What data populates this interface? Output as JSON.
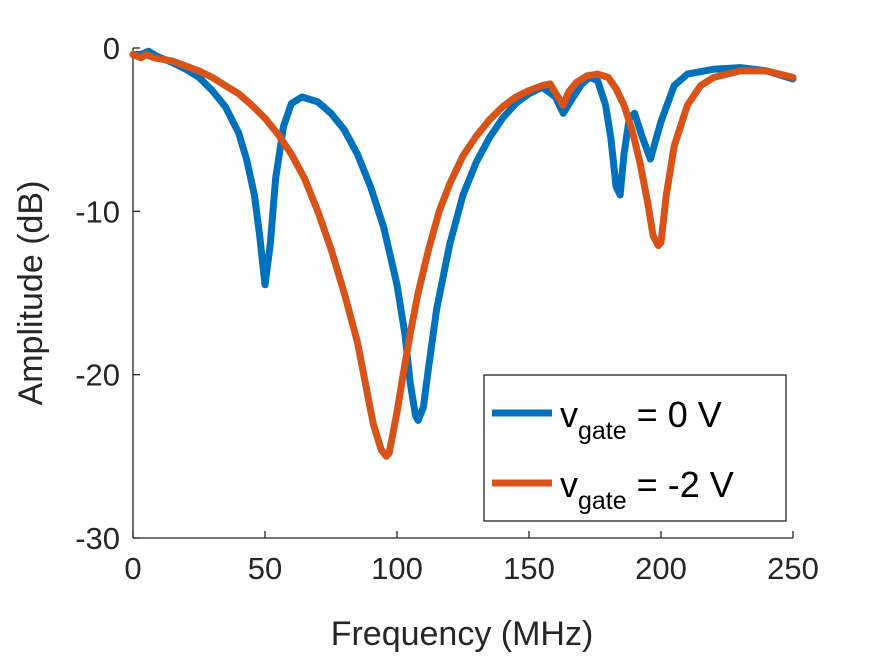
{
  "chart_data": {
    "type": "line",
    "title": "",
    "xlabel": "Frequency (MHz)",
    "ylabel": "Amplitude (dB)",
    "xlim": [
      0,
      250
    ],
    "ylim": [
      -30,
      0
    ],
    "xticks": [
      0,
      50,
      100,
      150,
      200,
      250
    ],
    "yticks": [
      0,
      -10,
      -20,
      -30
    ],
    "xtick_labels": [
      "0",
      "50",
      "100",
      "150",
      "200",
      "250"
    ],
    "ytick_labels": [
      "0",
      "-10",
      "-20",
      "-30"
    ],
    "grid": false,
    "legend_position": "bottom-right",
    "series": [
      {
        "name": "v",
        "name_subscript": "gate",
        "name_suffix": " = 0 V",
        "color": "#0072BD",
        "x": [
          0,
          3,
          6,
          9,
          15,
          20,
          25,
          30,
          35,
          40,
          43,
          46,
          48,
          50,
          52,
          54,
          57,
          60,
          64,
          70,
          75,
          80,
          85,
          90,
          95,
          100,
          103,
          105,
          107,
          108,
          110,
          112,
          115,
          120,
          125,
          130,
          135,
          140,
          145,
          150,
          155,
          160,
          163,
          166,
          170,
          173,
          176,
          179,
          181,
          183,
          184.5,
          186,
          188,
          190,
          193,
          196,
          200,
          205,
          210,
          220,
          230,
          240,
          250
        ],
        "y": [
          -0.4,
          -0.4,
          -0.2,
          -0.5,
          -0.9,
          -1.3,
          -1.8,
          -2.6,
          -3.6,
          -5.2,
          -6.8,
          -9.0,
          -11.5,
          -14.5,
          -12.0,
          -8.0,
          -4.8,
          -3.4,
          -3.0,
          -3.3,
          -4.0,
          -5.0,
          -6.5,
          -8.5,
          -11.0,
          -14.5,
          -17.5,
          -20.5,
          -22.5,
          -22.8,
          -22.0,
          -19.5,
          -16.0,
          -12.0,
          -9.0,
          -7.0,
          -5.5,
          -4.3,
          -3.4,
          -2.8,
          -2.4,
          -3.0,
          -4.0,
          -3.2,
          -2.2,
          -1.8,
          -2.0,
          -3.5,
          -5.5,
          -8.5,
          -9.0,
          -6.5,
          -4.3,
          -4.0,
          -5.5,
          -6.8,
          -4.5,
          -2.3,
          -1.6,
          -1.3,
          -1.2,
          -1.4,
          -1.9
        ]
      },
      {
        "name": "v",
        "name_subscript": "gate",
        "name_suffix": " = -2 V",
        "color": "#D95319",
        "x": [
          0,
          3,
          5,
          8,
          15,
          20,
          25,
          30,
          35,
          40,
          45,
          50,
          55,
          60,
          65,
          70,
          75,
          80,
          85,
          88,
          91,
          94,
          96,
          97,
          98,
          100,
          102,
          105,
          108,
          112,
          116,
          120,
          125,
          130,
          135,
          140,
          145,
          150,
          155,
          158,
          161,
          163,
          165,
          168,
          172,
          176,
          180,
          183,
          186,
          189,
          192,
          195,
          197,
          199,
          200,
          202,
          205,
          210,
          215,
          220,
          230,
          240,
          250
        ],
        "y": [
          -0.4,
          -0.6,
          -0.4,
          -0.6,
          -0.8,
          -1.1,
          -1.4,
          -1.8,
          -2.3,
          -2.8,
          -3.5,
          -4.3,
          -5.3,
          -6.5,
          -8.0,
          -10.0,
          -12.3,
          -15.0,
          -18.0,
          -20.5,
          -23.0,
          -24.6,
          -25.0,
          -24.8,
          -24.0,
          -22.3,
          -20.3,
          -17.5,
          -15.0,
          -12.3,
          -10.0,
          -8.3,
          -6.6,
          -5.4,
          -4.4,
          -3.6,
          -3.0,
          -2.6,
          -2.3,
          -2.2,
          -3.0,
          -3.5,
          -2.7,
          -2.1,
          -1.7,
          -1.6,
          -1.8,
          -2.5,
          -3.5,
          -5.0,
          -7.0,
          -9.5,
          -11.5,
          -12.1,
          -11.9,
          -9.0,
          -6.0,
          -3.5,
          -2.3,
          -1.8,
          -1.4,
          -1.4,
          -1.8
        ]
      }
    ]
  }
}
